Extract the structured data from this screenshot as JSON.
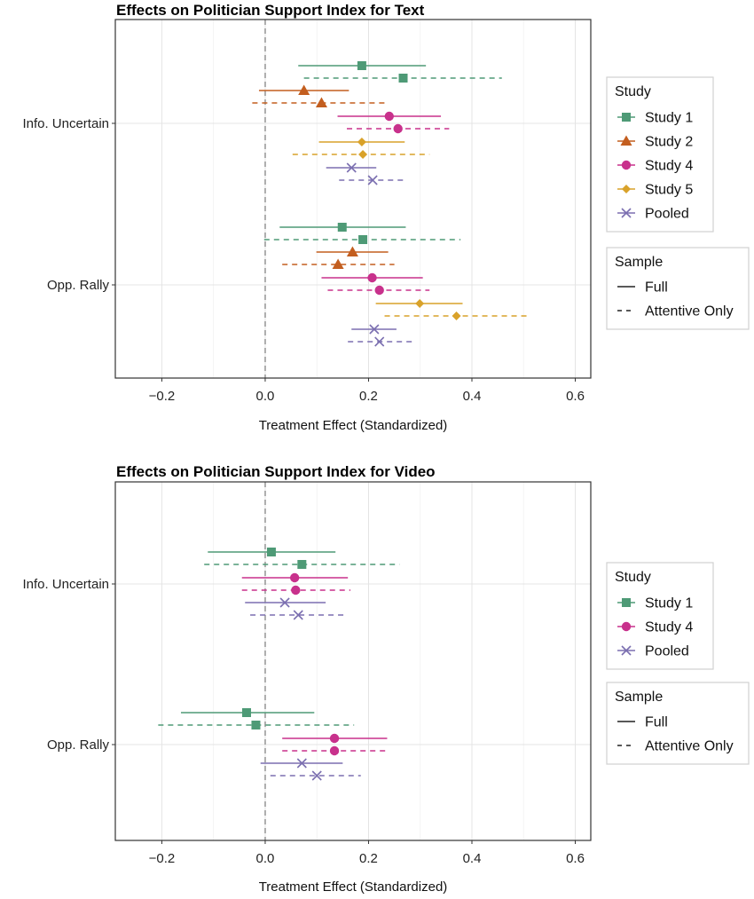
{
  "chart_data": [
    {
      "type": "scatter",
      "subtype": "coefficient-plot-with-error-bars",
      "title": "Effects on Politician Support Index for Text",
      "xlabel": "Treatment Effect (Standardized)",
      "ylabel": "",
      "xlim": [
        -0.29,
        0.63
      ],
      "xticks": [
        -0.2,
        0.0,
        0.2,
        0.4,
        0.6
      ],
      "xtick_labels": [
        "−0.2",
        "0.0",
        "0.2",
        "0.4",
        "0.6"
      ],
      "reference_line": 0.0,
      "grid": true,
      "legend_position": "right",
      "categories": [
        "Info. Uncertain",
        "Opp. Rally"
      ],
      "legend_study": {
        "title": "Study",
        "items": [
          {
            "label": "Study 1",
            "color": "#4e9a76",
            "shape": "square"
          },
          {
            "label": "Study 2",
            "color": "#c35e1f",
            "shape": "triangle"
          },
          {
            "label": "Study 4",
            "color": "#c8318c",
            "shape": "circle"
          },
          {
            "label": "Study 5",
            "color": "#d9a22a",
            "shape": "diamond"
          },
          {
            "label": "Pooled",
            "color": "#7b6fb0",
            "shape": "cross"
          }
        ]
      },
      "legend_sample": {
        "title": "Sample",
        "items": [
          {
            "label": "Full",
            "dash": "solid"
          },
          {
            "label": "Attentive Only",
            "dash": "dashed"
          }
        ]
      },
      "series": [
        {
          "category": "Info. Uncertain",
          "study": "Study 1",
          "sample": "Full",
          "estimate": 0.187,
          "lower": 0.064,
          "upper": 0.311
        },
        {
          "category": "Info. Uncertain",
          "study": "Study 1",
          "sample": "Attentive Only",
          "estimate": 0.267,
          "lower": 0.075,
          "upper": 0.458
        },
        {
          "category": "Info. Uncertain",
          "study": "Study 2",
          "sample": "Full",
          "estimate": 0.075,
          "lower": -0.012,
          "upper": 0.162
        },
        {
          "category": "Info. Uncertain",
          "study": "Study 2",
          "sample": "Attentive Only",
          "estimate": 0.109,
          "lower": -0.025,
          "upper": 0.238
        },
        {
          "category": "Info. Uncertain",
          "study": "Study 4",
          "sample": "Full",
          "estimate": 0.24,
          "lower": 0.14,
          "upper": 0.34
        },
        {
          "category": "Info. Uncertain",
          "study": "Study 4",
          "sample": "Attentive Only",
          "estimate": 0.257,
          "lower": 0.158,
          "upper": 0.356
        },
        {
          "category": "Info. Uncertain",
          "study": "Study 5",
          "sample": "Full",
          "estimate": 0.187,
          "lower": 0.104,
          "upper": 0.27
        },
        {
          "category": "Info. Uncertain",
          "study": "Study 5",
          "sample": "Attentive Only",
          "estimate": 0.189,
          "lower": 0.053,
          "upper": 0.318
        },
        {
          "category": "Info. Uncertain",
          "study": "Pooled",
          "sample": "Full",
          "estimate": 0.167,
          "lower": 0.118,
          "upper": 0.215
        },
        {
          "category": "Info. Uncertain",
          "study": "Pooled",
          "sample": "Attentive Only",
          "estimate": 0.208,
          "lower": 0.143,
          "upper": 0.271
        },
        {
          "category": "Opp. Rally",
          "study": "Study 1",
          "sample": "Full",
          "estimate": 0.149,
          "lower": 0.028,
          "upper": 0.272
        },
        {
          "category": "Opp. Rally",
          "study": "Study 1",
          "sample": "Attentive Only",
          "estimate": 0.189,
          "lower": -0.002,
          "upper": 0.378
        },
        {
          "category": "Opp. Rally",
          "study": "Study 2",
          "sample": "Full",
          "estimate": 0.169,
          "lower": 0.099,
          "upper": 0.238
        },
        {
          "category": "Opp. Rally",
          "study": "Study 2",
          "sample": "Attentive Only",
          "estimate": 0.141,
          "lower": 0.033,
          "upper": 0.25
        },
        {
          "category": "Opp. Rally",
          "study": "Study 4",
          "sample": "Full",
          "estimate": 0.207,
          "lower": 0.109,
          "upper": 0.305
        },
        {
          "category": "Opp. Rally",
          "study": "Study 4",
          "sample": "Attentive Only",
          "estimate": 0.221,
          "lower": 0.121,
          "upper": 0.318
        },
        {
          "category": "Opp. Rally",
          "study": "Study 5",
          "sample": "Full",
          "estimate": 0.299,
          "lower": 0.214,
          "upper": 0.382
        },
        {
          "category": "Opp. Rally",
          "study": "Study 5",
          "sample": "Attentive Only",
          "estimate": 0.37,
          "lower": 0.231,
          "upper": 0.509
        },
        {
          "category": "Opp. Rally",
          "study": "Pooled",
          "sample": "Full",
          "estimate": 0.211,
          "lower": 0.167,
          "upper": 0.254
        },
        {
          "category": "Opp. Rally",
          "study": "Pooled",
          "sample": "Attentive Only",
          "estimate": 0.221,
          "lower": 0.16,
          "upper": 0.284
        }
      ]
    },
    {
      "type": "scatter",
      "subtype": "coefficient-plot-with-error-bars",
      "title": "Effects on Politician Support Index for Video",
      "xlabel": "Treatment Effect (Standardized)",
      "ylabel": "",
      "xlim": [
        -0.29,
        0.63
      ],
      "xticks": [
        -0.2,
        0.0,
        0.2,
        0.4,
        0.6
      ],
      "xtick_labels": [
        "−0.2",
        "0.0",
        "0.2",
        "0.4",
        "0.6"
      ],
      "reference_line": 0.0,
      "grid": true,
      "legend_position": "right",
      "categories": [
        "Info. Uncertain",
        "Opp. Rally"
      ],
      "legend_study": {
        "title": "Study",
        "items": [
          {
            "label": "Study 1",
            "color": "#4e9a76",
            "shape": "square"
          },
          {
            "label": "Study 4",
            "color": "#c8318c",
            "shape": "circle"
          },
          {
            "label": "Pooled",
            "color": "#7b6fb0",
            "shape": "cross"
          }
        ]
      },
      "legend_sample": {
        "title": "Sample",
        "items": [
          {
            "label": "Full",
            "dash": "solid"
          },
          {
            "label": "Attentive Only",
            "dash": "dashed"
          }
        ]
      },
      "series": [
        {
          "category": "Info. Uncertain",
          "study": "Study 1",
          "sample": "Full",
          "estimate": 0.012,
          "lower": -0.111,
          "upper": 0.136
        },
        {
          "category": "Info. Uncertain",
          "study": "Study 1",
          "sample": "Attentive Only",
          "estimate": 0.071,
          "lower": -0.118,
          "upper": 0.26
        },
        {
          "category": "Info. Uncertain",
          "study": "Study 4",
          "sample": "Full",
          "estimate": 0.057,
          "lower": -0.045,
          "upper": 0.16
        },
        {
          "category": "Info. Uncertain",
          "study": "Study 4",
          "sample": "Attentive Only",
          "estimate": 0.059,
          "lower": -0.045,
          "upper": 0.165
        },
        {
          "category": "Info. Uncertain",
          "study": "Pooled",
          "sample": "Full",
          "estimate": 0.038,
          "lower": -0.039,
          "upper": 0.117
        },
        {
          "category": "Info. Uncertain",
          "study": "Pooled",
          "sample": "Attentive Only",
          "estimate": 0.064,
          "lower": -0.029,
          "upper": 0.152
        },
        {
          "category": "Opp. Rally",
          "study": "Study 1",
          "sample": "Full",
          "estimate": -0.036,
          "lower": -0.163,
          "upper": 0.095
        },
        {
          "category": "Opp. Rally",
          "study": "Study 1",
          "sample": "Attentive Only",
          "estimate": -0.018,
          "lower": -0.207,
          "upper": 0.172
        },
        {
          "category": "Opp. Rally",
          "study": "Study 4",
          "sample": "Full",
          "estimate": 0.134,
          "lower": 0.033,
          "upper": 0.236
        },
        {
          "category": "Opp. Rally",
          "study": "Study 4",
          "sample": "Attentive Only",
          "estimate": 0.134,
          "lower": 0.033,
          "upper": 0.236
        },
        {
          "category": "Opp. Rally",
          "study": "Pooled",
          "sample": "Full",
          "estimate": 0.071,
          "lower": -0.009,
          "upper": 0.15
        },
        {
          "category": "Opp. Rally",
          "study": "Pooled",
          "sample": "Attentive Only",
          "estimate": 0.1,
          "lower": 0.01,
          "upper": 0.185
        }
      ]
    }
  ]
}
